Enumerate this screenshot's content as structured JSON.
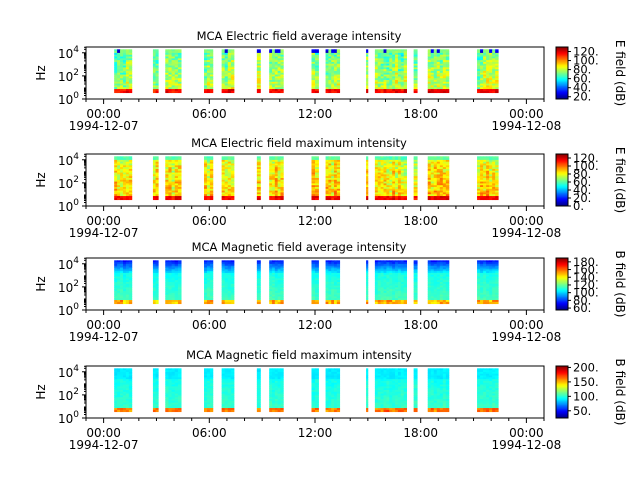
{
  "figure": {
    "background": "#ffffff"
  },
  "chart_data": [
    {
      "type": "heatmap",
      "title": "MCA  Electric field average intensity",
      "ylabel": "Hz",
      "colorbar_label": "E field (dB)",
      "colorbar_ticks": [
        "20.",
        "40.",
        "60.",
        "80.",
        "100.",
        "120."
      ],
      "colorbar_range": [
        15,
        130
      ],
      "y_ticks": [
        {
          "base": "10",
          "exp": "0"
        },
        {
          "base": "10",
          "exp": "2"
        },
        {
          "base": "10",
          "exp": "4"
        }
      ],
      "y_range_log10": [
        0,
        4.5
      ],
      "x_ticks": [
        "00:00",
        "06:00",
        "12:00",
        "18:00",
        "00:00"
      ],
      "x_tick_dates": [
        "1994-12-07",
        "",
        "",
        "",
        "1994-12-08"
      ],
      "x_range_hours": [
        -1,
        25
      ],
      "profile": "efield_avg"
    },
    {
      "type": "heatmap",
      "title": "MCA  Electric field maximum intensity",
      "ylabel": "Hz",
      "colorbar_label": "E field (dB)",
      "colorbar_ticks": [
        "0.",
        "20.",
        "40.",
        "60.",
        "80.",
        "100.",
        "120."
      ],
      "colorbar_range": [
        0,
        130
      ],
      "y_ticks": [
        {
          "base": "10",
          "exp": "0"
        },
        {
          "base": "10",
          "exp": "2"
        },
        {
          "base": "10",
          "exp": "4"
        }
      ],
      "y_range_log10": [
        0,
        4.5
      ],
      "x_ticks": [
        "00:00",
        "06:00",
        "12:00",
        "18:00",
        "00:00"
      ],
      "x_tick_dates": [
        "1994-12-07",
        "",
        "",
        "",
        "1994-12-08"
      ],
      "x_range_hours": [
        -1,
        25
      ],
      "profile": "efield_max"
    },
    {
      "type": "heatmap",
      "title": "MCA  Magnetic field average intensity",
      "ylabel": "Hz",
      "colorbar_label": "B field (dB)",
      "colorbar_ticks": [
        "60.",
        "80.",
        "100.",
        "120.",
        "140.",
        "160.",
        "180."
      ],
      "colorbar_range": [
        55,
        190
      ],
      "y_ticks": [
        {
          "base": "10",
          "exp": "0"
        },
        {
          "base": "10",
          "exp": "2"
        },
        {
          "base": "10",
          "exp": "4"
        }
      ],
      "y_range_log10": [
        0,
        4.5
      ],
      "x_ticks": [
        "00:00",
        "06:00",
        "12:00",
        "18:00",
        "00:00"
      ],
      "x_tick_dates": [
        "1994-12-07",
        "",
        "",
        "",
        "1994-12-08"
      ],
      "x_range_hours": [
        -1,
        25
      ],
      "profile": "bfield_avg"
    },
    {
      "type": "heatmap",
      "title": "MCA  Magnetic field maximum intensity",
      "ylabel": "Hz",
      "colorbar_label": "B field (dB)",
      "colorbar_ticks": [
        "50.",
        "100.",
        "150.",
        "200."
      ],
      "colorbar_range": [
        25,
        205
      ],
      "y_ticks": [
        {
          "base": "10",
          "exp": "0"
        },
        {
          "base": "10",
          "exp": "2"
        },
        {
          "base": "10",
          "exp": "4"
        }
      ],
      "y_range_log10": [
        0,
        4.5
      ],
      "x_ticks": [
        "00:00",
        "06:00",
        "12:00",
        "18:00",
        "00:00"
      ],
      "x_tick_dates": [
        "1994-12-07",
        "",
        "",
        "",
        "1994-12-08"
      ],
      "x_range_hours": [
        -1,
        25
      ],
      "profile": "bfield_max"
    }
  ],
  "data_intervals_hours": [
    [
      0.6,
      1.6
    ],
    [
      2.8,
      3.1
    ],
    [
      3.5,
      4.4
    ],
    [
      5.7,
      6.2
    ],
    [
      6.7,
      7.4
    ],
    [
      8.7,
      8.9
    ],
    [
      9.4,
      10.2
    ],
    [
      11.8,
      12.2
    ],
    [
      12.6,
      13.4
    ],
    [
      14.9,
      15.0
    ],
    [
      15.4,
      17.2
    ],
    [
      17.6,
      17.8
    ],
    [
      18.4,
      19.6
    ],
    [
      21.2,
      22.4
    ]
  ]
}
